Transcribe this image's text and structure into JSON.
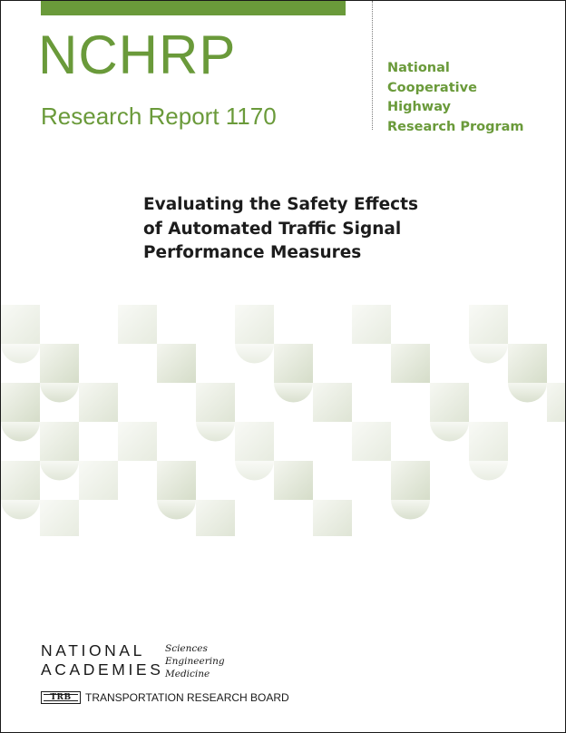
{
  "colors": {
    "brand_green": "#6a9a3a",
    "text_dark": "#1c1c1c",
    "pattern_light": "#f3f5ee",
    "pattern_dark": "#d3dbc6"
  },
  "header": {
    "series": "NCHRP",
    "report_number": "Research Report 1170"
  },
  "program": {
    "lines": [
      "National",
      "Cooperative",
      "Highway",
      "Research Program"
    ]
  },
  "title": {
    "lines": [
      "Evaluating the Safety Effects",
      "of Automated Traffic Signal",
      "Performance Measures"
    ]
  },
  "decoration": {
    "icon": "quarter-circle-tile-pattern"
  },
  "footer": {
    "academies_logo": {
      "word1": "NATIONAL",
      "word2": "ACADEMIES",
      "subtitles": [
        "Sciences",
        "Engineering",
        "Medicine"
      ]
    },
    "trb": {
      "badge": "TRB",
      "name": "TRANSPORTATION RESEARCH BOARD"
    }
  }
}
